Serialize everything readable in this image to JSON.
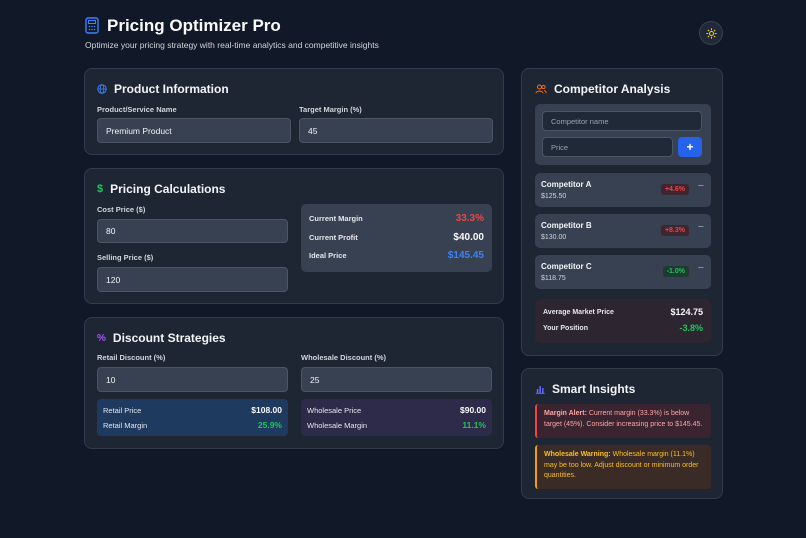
{
  "header": {
    "title": "Pricing Optimizer Pro",
    "subtitle": "Optimize your pricing strategy with real-time analytics and competitive insights",
    "theme_icon": "sun-icon"
  },
  "product": {
    "title": "Product Information",
    "name_label": "Product/Service Name",
    "name_value": "Premium Product",
    "margin_label": "Target Margin (%)",
    "margin_value": "45"
  },
  "pricing": {
    "title": "Pricing Calculations",
    "cost_label": "Cost Price ($)",
    "cost_value": "80",
    "selling_label": "Selling Price ($)",
    "selling_value": "120",
    "current_margin_label": "Current Margin",
    "current_margin_value": "33.3%",
    "current_profit_label": "Current Profit",
    "current_profit_value": "$40.00",
    "ideal_price_label": "Ideal Price",
    "ideal_price_value": "$145.45"
  },
  "discount": {
    "title": "Discount Strategies",
    "retail_label": "Retail Discount (%)",
    "retail_value": "10",
    "wholesale_label": "Wholesale Discount (%)",
    "wholesale_value": "25",
    "retail_price_label": "Retail Price",
    "retail_price_value": "$108.00",
    "retail_margin_label": "Retail Margin",
    "retail_margin_value": "25.9%",
    "wholesale_price_label": "Wholesale Price",
    "wholesale_price_value": "$90.00",
    "wholesale_margin_label": "Wholesale Margin",
    "wholesale_margin_value": "11.1%"
  },
  "competitors": {
    "title": "Competitor Analysis",
    "name_placeholder": "Competitor name",
    "price_placeholder": "Price",
    "add_label": "+",
    "items": [
      {
        "name": "Competitor A",
        "price": "$125.50",
        "diff": "+4.6%",
        "remove": "−"
      },
      {
        "name": "Competitor B",
        "price": "$130.00",
        "diff": "+8.3%",
        "remove": "−"
      },
      {
        "name": "Competitor C",
        "price": "$118.75",
        "diff": "-1.0%",
        "remove": "−"
      }
    ],
    "avg_label": "Average Market Price",
    "avg_value": "$124.75",
    "position_label": "Your Position",
    "position_value": "-3.8%"
  },
  "insights": {
    "title": "Smart Insights",
    "alert_title": "Margin Alert:",
    "alert_text": " Current margin (33.3%) is below target (45%). Consider increasing price to $145.45.",
    "warning_title": "Wholesale Warning:",
    "warning_text": " Wholesale margin (11.1%) may be too low. Adjust discount or minimum order quantities."
  },
  "colors": {
    "background": "#111827",
    "card": "#1e2533",
    "accent_blue": "#3b82f6",
    "negative_red": "#ef4444",
    "positive_green": "#22c55e",
    "warning_orange": "#f59e0b"
  }
}
